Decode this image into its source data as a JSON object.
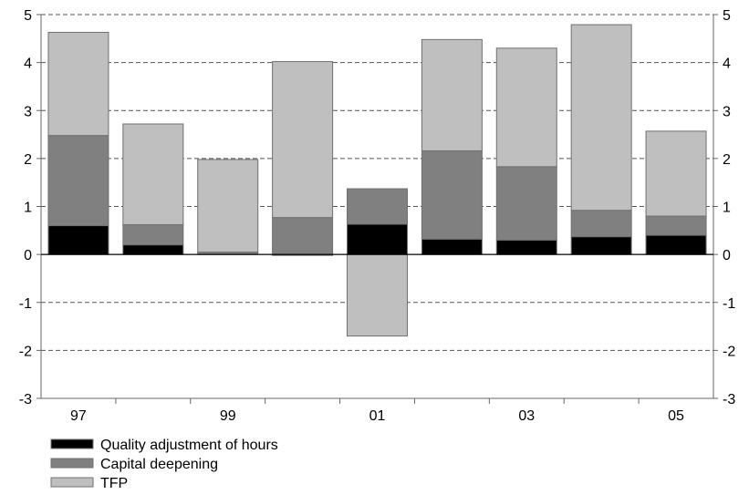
{
  "chart_data": {
    "type": "bar",
    "stacked": true,
    "categories": [
      "97",
      "98",
      "99",
      "00",
      "01",
      "02",
      "03",
      "04",
      "05"
    ],
    "x_tick_labels_shown": [
      "97",
      "",
      "99",
      "",
      "01",
      "",
      "03",
      "",
      "05"
    ],
    "y_ticks": [
      -3,
      -2,
      -1,
      0,
      1,
      2,
      3,
      4,
      5
    ],
    "ylim": [
      -3,
      5
    ],
    "y_axis_sides": "both",
    "grid": "horizontal-dashed",
    "legend_position": "bottom-left",
    "series": [
      {
        "name": "Quality adjustment of hours",
        "color": "#000000",
        "values": [
          0.6,
          0.2,
          0.0,
          -0.02,
          0.63,
          0.32,
          0.3,
          0.37,
          0.4
        ]
      },
      {
        "name": "Capital deepening",
        "color": "#808080",
        "values": [
          1.88,
          0.42,
          0.05,
          0.77,
          0.74,
          1.84,
          1.53,
          0.55,
          0.4
        ]
      },
      {
        "name": "TFP",
        "color": "#bfbfbf",
        "values": [
          2.15,
          2.1,
          1.93,
          3.25,
          -1.7,
          2.32,
          2.47,
          3.87,
          1.77
        ]
      }
    ]
  }
}
